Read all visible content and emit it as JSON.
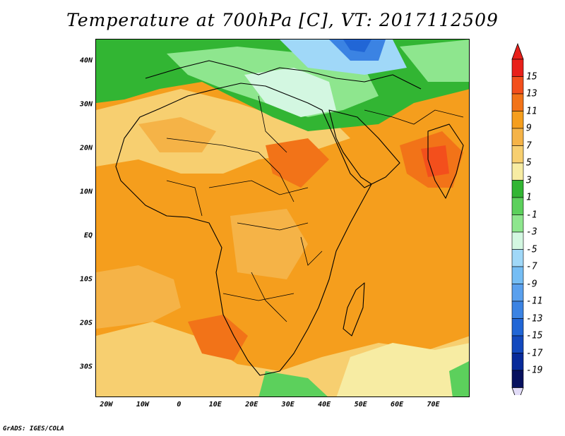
{
  "title": "Temperature at 700hPa [C], VT: 2017112509",
  "credit": "GrADS: IGES/COLA",
  "map": {
    "region": "Africa and Middle East",
    "projection": "lat-lon",
    "variable": "temperature at 700hPa",
    "units": "C",
    "lon_range": [
      -23,
      80
    ],
    "lat_range": [
      -37,
      45
    ],
    "features": [
      "coastlines",
      "country borders",
      "filled contours"
    ]
  },
  "lat_labels": [
    {
      "text": "40N",
      "lat": 40
    },
    {
      "text": "30N",
      "lat": 30
    },
    {
      "text": "20N",
      "lat": 20
    },
    {
      "text": "10N",
      "lat": 10
    },
    {
      "text": "EQ",
      "lat": 0
    },
    {
      "text": "10S",
      "lat": -10
    },
    {
      "text": "20S",
      "lat": -20
    },
    {
      "text": "30S",
      "lat": -30
    }
  ],
  "lon_labels": [
    {
      "text": "20W",
      "lon": -20
    },
    {
      "text": "10W",
      "lon": -10
    },
    {
      "text": "0",
      "lon": 0
    },
    {
      "text": "10E",
      "lon": 10
    },
    {
      "text": "20E",
      "lon": 20
    },
    {
      "text": "30E",
      "lon": 30
    },
    {
      "text": "40E",
      "lon": 40
    },
    {
      "text": "50E",
      "lon": 50
    },
    {
      "text": "60E",
      "lon": 60
    },
    {
      "text": "70E",
      "lon": 70
    }
  ],
  "colorbar": {
    "labels": [
      "15",
      "13",
      "11",
      "9",
      "7",
      "5",
      "3",
      "1",
      "-1",
      "-3",
      "-5",
      "-7",
      "-9",
      "-11",
      "-13",
      "-15",
      "-17",
      "-19"
    ],
    "colors": [
      "#e8201a",
      "#f34f1c",
      "#f27318",
      "#f59e1d",
      "#f5b347",
      "#f7cf70",
      "#f7eca3",
      "#32b533",
      "#5cd05c",
      "#8ee68e",
      "#d3f7e1",
      "#a0d8f8",
      "#75bdf4",
      "#5aa0ee",
      "#3b83e3",
      "#2166d6",
      "#1349be",
      "#082a9a",
      "#06105e"
    ],
    "top_arrow": "#e8201a",
    "bottom_arrow": "#e2dcf8"
  }
}
